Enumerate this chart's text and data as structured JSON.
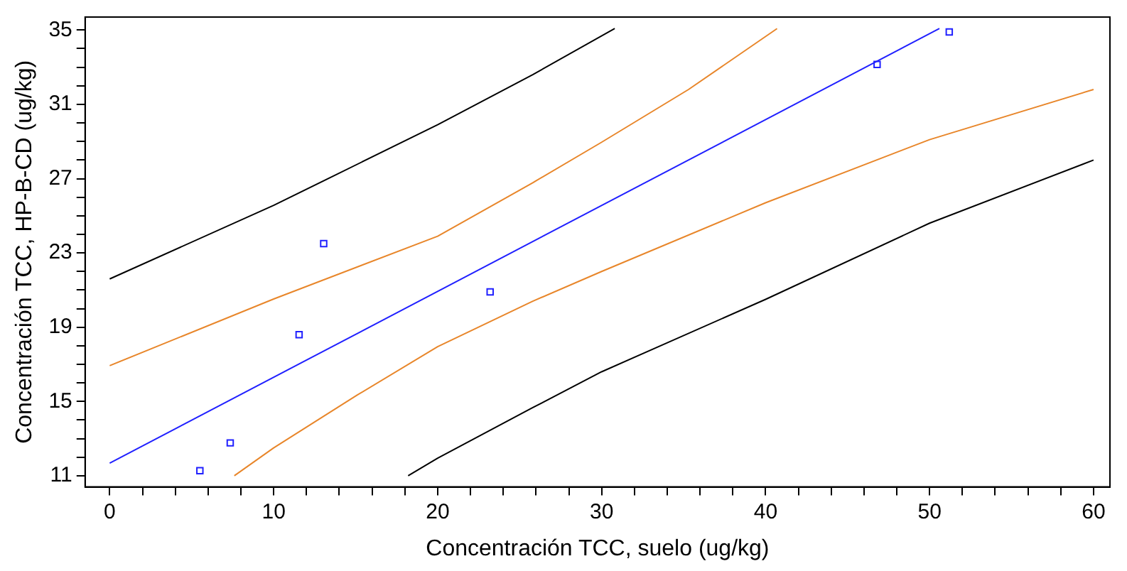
{
  "chart_data": {
    "type": "scatter",
    "xlabel": "Concentración TCC, suelo (ug/kg)",
    "ylabel": "Concentración TCC, HP-B-CD (ug/kg)",
    "xlim": [
      -1.5,
      61
    ],
    "ylim": [
      10.4,
      35.7
    ],
    "xticks": [
      0,
      {
        "value": 2,
        "label": null
      },
      {
        "value": 4,
        "label": null
      },
      {
        "value": 6,
        "label": null
      },
      {
        "value": 8,
        "label": null
      },
      10,
      {
        "value": 12,
        "label": null
      },
      {
        "value": 14,
        "label": null
      },
      {
        "value": 16,
        "label": null
      },
      {
        "value": 18,
        "label": null
      },
      20,
      {
        "value": 22,
        "label": null
      },
      {
        "value": 24,
        "label": null
      },
      {
        "value": 26,
        "label": null
      },
      {
        "value": 28,
        "label": null
      },
      30,
      {
        "value": 32,
        "label": null
      },
      {
        "value": 34,
        "label": null
      },
      {
        "value": 36,
        "label": null
      },
      {
        "value": 38,
        "label": null
      },
      40,
      {
        "value": 42,
        "label": null
      },
      {
        "value": 44,
        "label": null
      },
      {
        "value": 46,
        "label": null
      },
      {
        "value": 48,
        "label": null
      },
      50,
      {
        "value": 52,
        "label": null
      },
      {
        "value": 54,
        "label": null
      },
      {
        "value": 56,
        "label": null
      },
      {
        "value": 58,
        "label": null
      },
      60
    ],
    "yticks": [
      11,
      {
        "value": 12,
        "label": null
      },
      {
        "value": 13,
        "label": null
      },
      {
        "value": 14,
        "label": null
      },
      15,
      {
        "value": 16,
        "label": null
      },
      {
        "value": 17,
        "label": null
      },
      {
        "value": 18,
        "label": null
      },
      19,
      {
        "value": 20,
        "label": null
      },
      {
        "value": 21,
        "label": null
      },
      {
        "value": 22,
        "label": null
      },
      23,
      {
        "value": 24,
        "label": null
      },
      {
        "value": 25,
        "label": null
      },
      {
        "value": 26,
        "label": null
      },
      27,
      {
        "value": 28,
        "label": null
      },
      {
        "value": 29,
        "label": null
      },
      {
        "value": 30,
        "label": null
      },
      31,
      {
        "value": 32,
        "label": null
      },
      {
        "value": 33,
        "label": null
      },
      {
        "value": 34,
        "label": null
      },
      35
    ],
    "grid": false,
    "legend": false,
    "series": [
      {
        "type": "line",
        "marker": "none",
        "color": "#000000",
        "x": [
          0,
          10,
          20,
          25.8,
          30.8
        ],
        "values": [
          21.6,
          25.56,
          29.9,
          32.6,
          35.08
        ]
      },
      {
        "type": "line",
        "marker": "none",
        "color": "#e8862a",
        "x": [
          0,
          10,
          20,
          25.8,
          30,
          35.3,
          40.7
        ],
        "values": [
          16.93,
          20.52,
          23.9,
          26.78,
          28.96,
          31.8,
          35.08
        ]
      },
      {
        "type": "line",
        "marker": "none",
        "color": "#2020ff",
        "x": [
          0,
          50.6
        ],
        "values": [
          11.68,
          35.08
        ]
      },
      {
        "type": "line",
        "marker": "none",
        "color": "#e8862a",
        "x": [
          7.6,
          10,
          15.1,
          20,
          25.8,
          30,
          40,
          50,
          60
        ],
        "values": [
          11,
          12.5,
          15.35,
          17.95,
          20.4,
          22.0,
          25.7,
          29.1,
          31.8
        ]
      },
      {
        "type": "line",
        "marker": "none",
        "color": "#000000",
        "x": [
          18.2,
          20,
          25.8,
          30,
          40,
          50,
          60
        ],
        "values": [
          11,
          11.95,
          14.67,
          16.6,
          20.5,
          24.6,
          28.0
        ]
      },
      {
        "marker": "square",
        "color": "#2020ff",
        "x": [
          5.5,
          7.35,
          11.55,
          13.05,
          23.2,
          46.8,
          51.2
        ],
        "values": [
          11.27,
          12.77,
          18.6,
          23.5,
          20.9,
          33.15,
          34.9
        ]
      }
    ]
  }
}
